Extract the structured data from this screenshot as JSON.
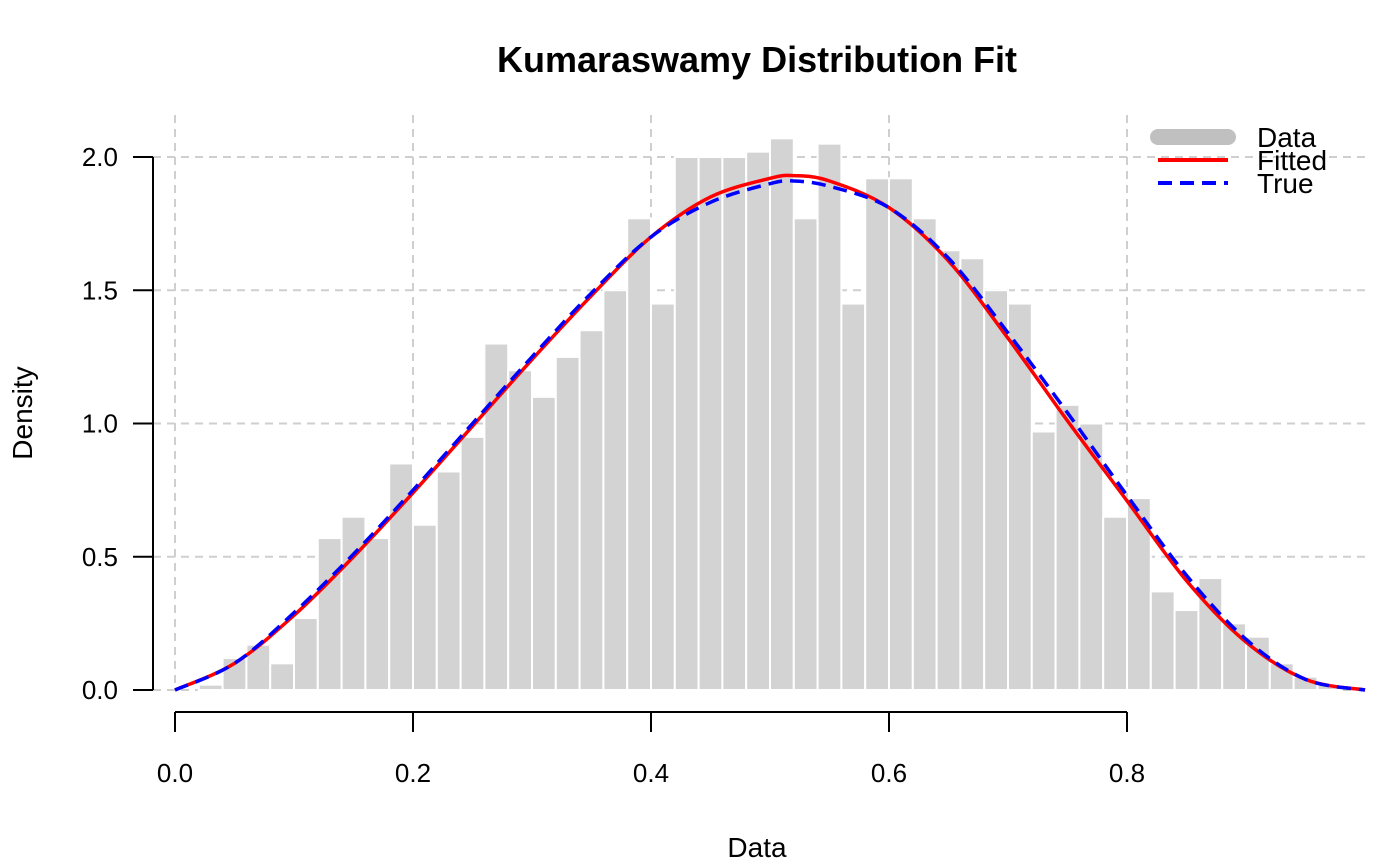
{
  "chart_data": {
    "type": "histogram",
    "title": "Kumaraswamy Distribution Fit",
    "xlabel": "Data",
    "ylabel": "Density",
    "xlim": [
      0.0,
      1.0
    ],
    "ylim": [
      0.0,
      2.0
    ],
    "x_ticks": [
      "0.0",
      "0.2",
      "0.4",
      "0.6",
      "0.8"
    ],
    "y_ticks": [
      "0.0",
      "0.5",
      "1.0",
      "1.5",
      "2.0"
    ],
    "grid": true,
    "legend_position": "top-right",
    "histogram": {
      "name": "Data",
      "color": "#d3d3d3",
      "bin_start": 0.0,
      "bin_width": 0.02,
      "densities": [
        0.0,
        0.02,
        0.12,
        0.17,
        0.1,
        0.27,
        0.57,
        0.65,
        0.57,
        0.85,
        0.62,
        0.82,
        0.95,
        1.3,
        1.2,
        1.1,
        1.25,
        1.35,
        1.5,
        1.77,
        1.45,
        2.0,
        2.0,
        2.0,
        2.02,
        2.07,
        1.77,
        2.05,
        1.45,
        1.92,
        1.92,
        1.77,
        1.65,
        1.62,
        1.5,
        1.45,
        0.97,
        1.07,
        1.0,
        0.65,
        0.72,
        0.37,
        0.3,
        0.42,
        0.25,
        0.2,
        0.1,
        0.05,
        0.02,
        0.0
      ]
    },
    "series": [
      {
        "name": "Fitted",
        "color": "#ff0000",
        "style": "solid",
        "x": [
          0.0,
          0.05,
          0.1,
          0.15,
          0.2,
          0.25,
          0.3,
          0.35,
          0.4,
          0.45,
          0.5,
          0.52,
          0.55,
          0.6,
          0.65,
          0.7,
          0.75,
          0.8,
          0.85,
          0.9,
          0.95,
          1.0
        ],
        "y": [
          0.0,
          0.1,
          0.28,
          0.5,
          0.74,
          0.99,
          1.24,
          1.48,
          1.7,
          1.85,
          1.92,
          1.93,
          1.91,
          1.81,
          1.61,
          1.32,
          1.01,
          0.71,
          0.41,
          0.18,
          0.04,
          0.0
        ]
      },
      {
        "name": "True",
        "color": "#0000ff",
        "style": "dashed",
        "x": [
          0.0,
          0.05,
          0.1,
          0.15,
          0.2,
          0.25,
          0.3,
          0.35,
          0.4,
          0.45,
          0.5,
          0.52,
          0.55,
          0.6,
          0.65,
          0.7,
          0.75,
          0.8,
          0.85,
          0.9,
          0.95,
          1.0
        ],
        "y": [
          0.0,
          0.1,
          0.29,
          0.51,
          0.75,
          1.0,
          1.25,
          1.49,
          1.7,
          1.83,
          1.9,
          1.91,
          1.89,
          1.81,
          1.62,
          1.34,
          1.04,
          0.73,
          0.43,
          0.19,
          0.04,
          0.0
        ]
      }
    ],
    "legend": [
      {
        "label": "Data",
        "color": "#c0c0c0",
        "style": "thick"
      },
      {
        "label": "Fitted",
        "color": "#ff0000",
        "style": "solid"
      },
      {
        "label": "True",
        "color": "#0000ff",
        "style": "dashed"
      }
    ]
  }
}
